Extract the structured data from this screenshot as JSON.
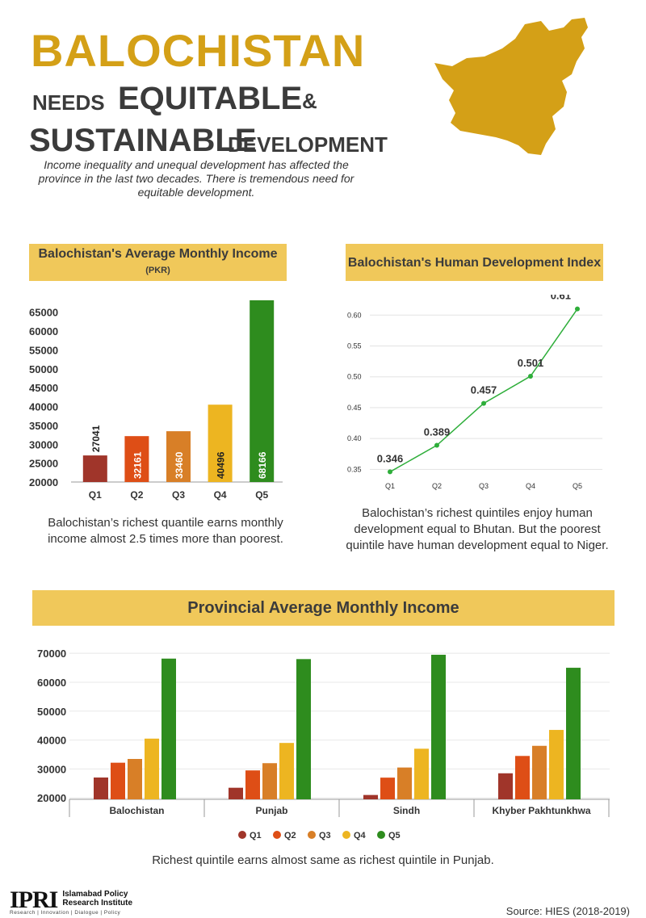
{
  "header": {
    "title": "BALOCHISTAN",
    "needs": "NEEDS",
    "equitable": "EQUITABLE",
    "amp": "&",
    "sustainable": "SUSTAINABLE",
    "development": "DEVELOPMENT",
    "intro": "Income inequality and unequal development has affected the province in the last two decades. There is tremendous need for equitable development."
  },
  "colors": {
    "gold": "#D4A017",
    "header_bg": "#F0C85A",
    "q1": "#A0352A",
    "q2": "#DE4E16",
    "q3": "#D87F27",
    "q4": "#EDB521",
    "q5": "#2E8C1E",
    "line": "#2EAE3A"
  },
  "panel1": {
    "title": "Balochistan's Average Monthly Income",
    "unit": "(PKR)",
    "caption": "Balochistan’s richest quantile earns monthly income almost 2.5 times more than poorest."
  },
  "panel2": {
    "title": "Balochistan's Human Development Index",
    "caption": "Balochistan’s richest quintiles enjoy human development equal to Bhutan. But the poorest quintile have human development equal to Niger."
  },
  "panel3": {
    "title": "Provincial Average Monthly Income",
    "caption": "Richest quintile earns almost same as richest quintile in Punjab."
  },
  "chart_data": [
    {
      "type": "bar",
      "categories": [
        "Q1",
        "Q2",
        "Q3",
        "Q4",
        "Q5"
      ],
      "values": [
        27041,
        32161,
        33460,
        40496,
        68166
      ],
      "data_labels": [
        "27041",
        "32161",
        "33460",
        "40496",
        "68166"
      ],
      "yticks": [
        "65000",
        "60000",
        "55000",
        "50000",
        "45000",
        "40000",
        "35000",
        "30000",
        "25000",
        "20000"
      ],
      "ylim": [
        20000,
        67500
      ],
      "grid": false
    },
    {
      "type": "line",
      "x": [
        "Q1",
        "Q2",
        "Q3",
        "Q4",
        "Q5"
      ],
      "values": [
        0.346,
        0.389,
        0.457,
        0.501,
        0.61
      ],
      "data_labels": [
        "0.346",
        "0.389",
        "0.457",
        "0.501",
        "0.61"
      ],
      "yticks": [
        "0.60",
        "0.55",
        "0.50",
        "0.45",
        "0.40",
        "0.35"
      ],
      "ylim": [
        0.34,
        0.62
      ],
      "grid": true
    },
    {
      "type": "bar",
      "categories": [
        "Balochistan",
        "Punjab",
        "Sindh",
        "Khyber Pakhtunkhwa"
      ],
      "series": [
        {
          "name": "Q1",
          "values": [
            27041,
            23500,
            21000,
            28500
          ]
        },
        {
          "name": "Q2",
          "values": [
            32161,
            29500,
            27000,
            34500
          ]
        },
        {
          "name": "Q3",
          "values": [
            33460,
            32000,
            30500,
            38000
          ]
        },
        {
          "name": "Q4",
          "values": [
            40496,
            39000,
            37000,
            43500
          ]
        },
        {
          "name": "Q5",
          "values": [
            68166,
            68000,
            69500,
            65000
          ]
        }
      ],
      "yticks": [
        "70000",
        "60000",
        "50000",
        "40000",
        "30000",
        "20000"
      ],
      "ylim": [
        19500,
        72000
      ],
      "legend": "bottom",
      "grid": true
    }
  ],
  "footer": {
    "logo": "IPRI",
    "org_line1": "Islamabad Policy",
    "org_line2": "Research Institute",
    "tagline": "Research | Innovation | Dialogue | Policy",
    "source": "Source: HIES (2018-2019)"
  }
}
